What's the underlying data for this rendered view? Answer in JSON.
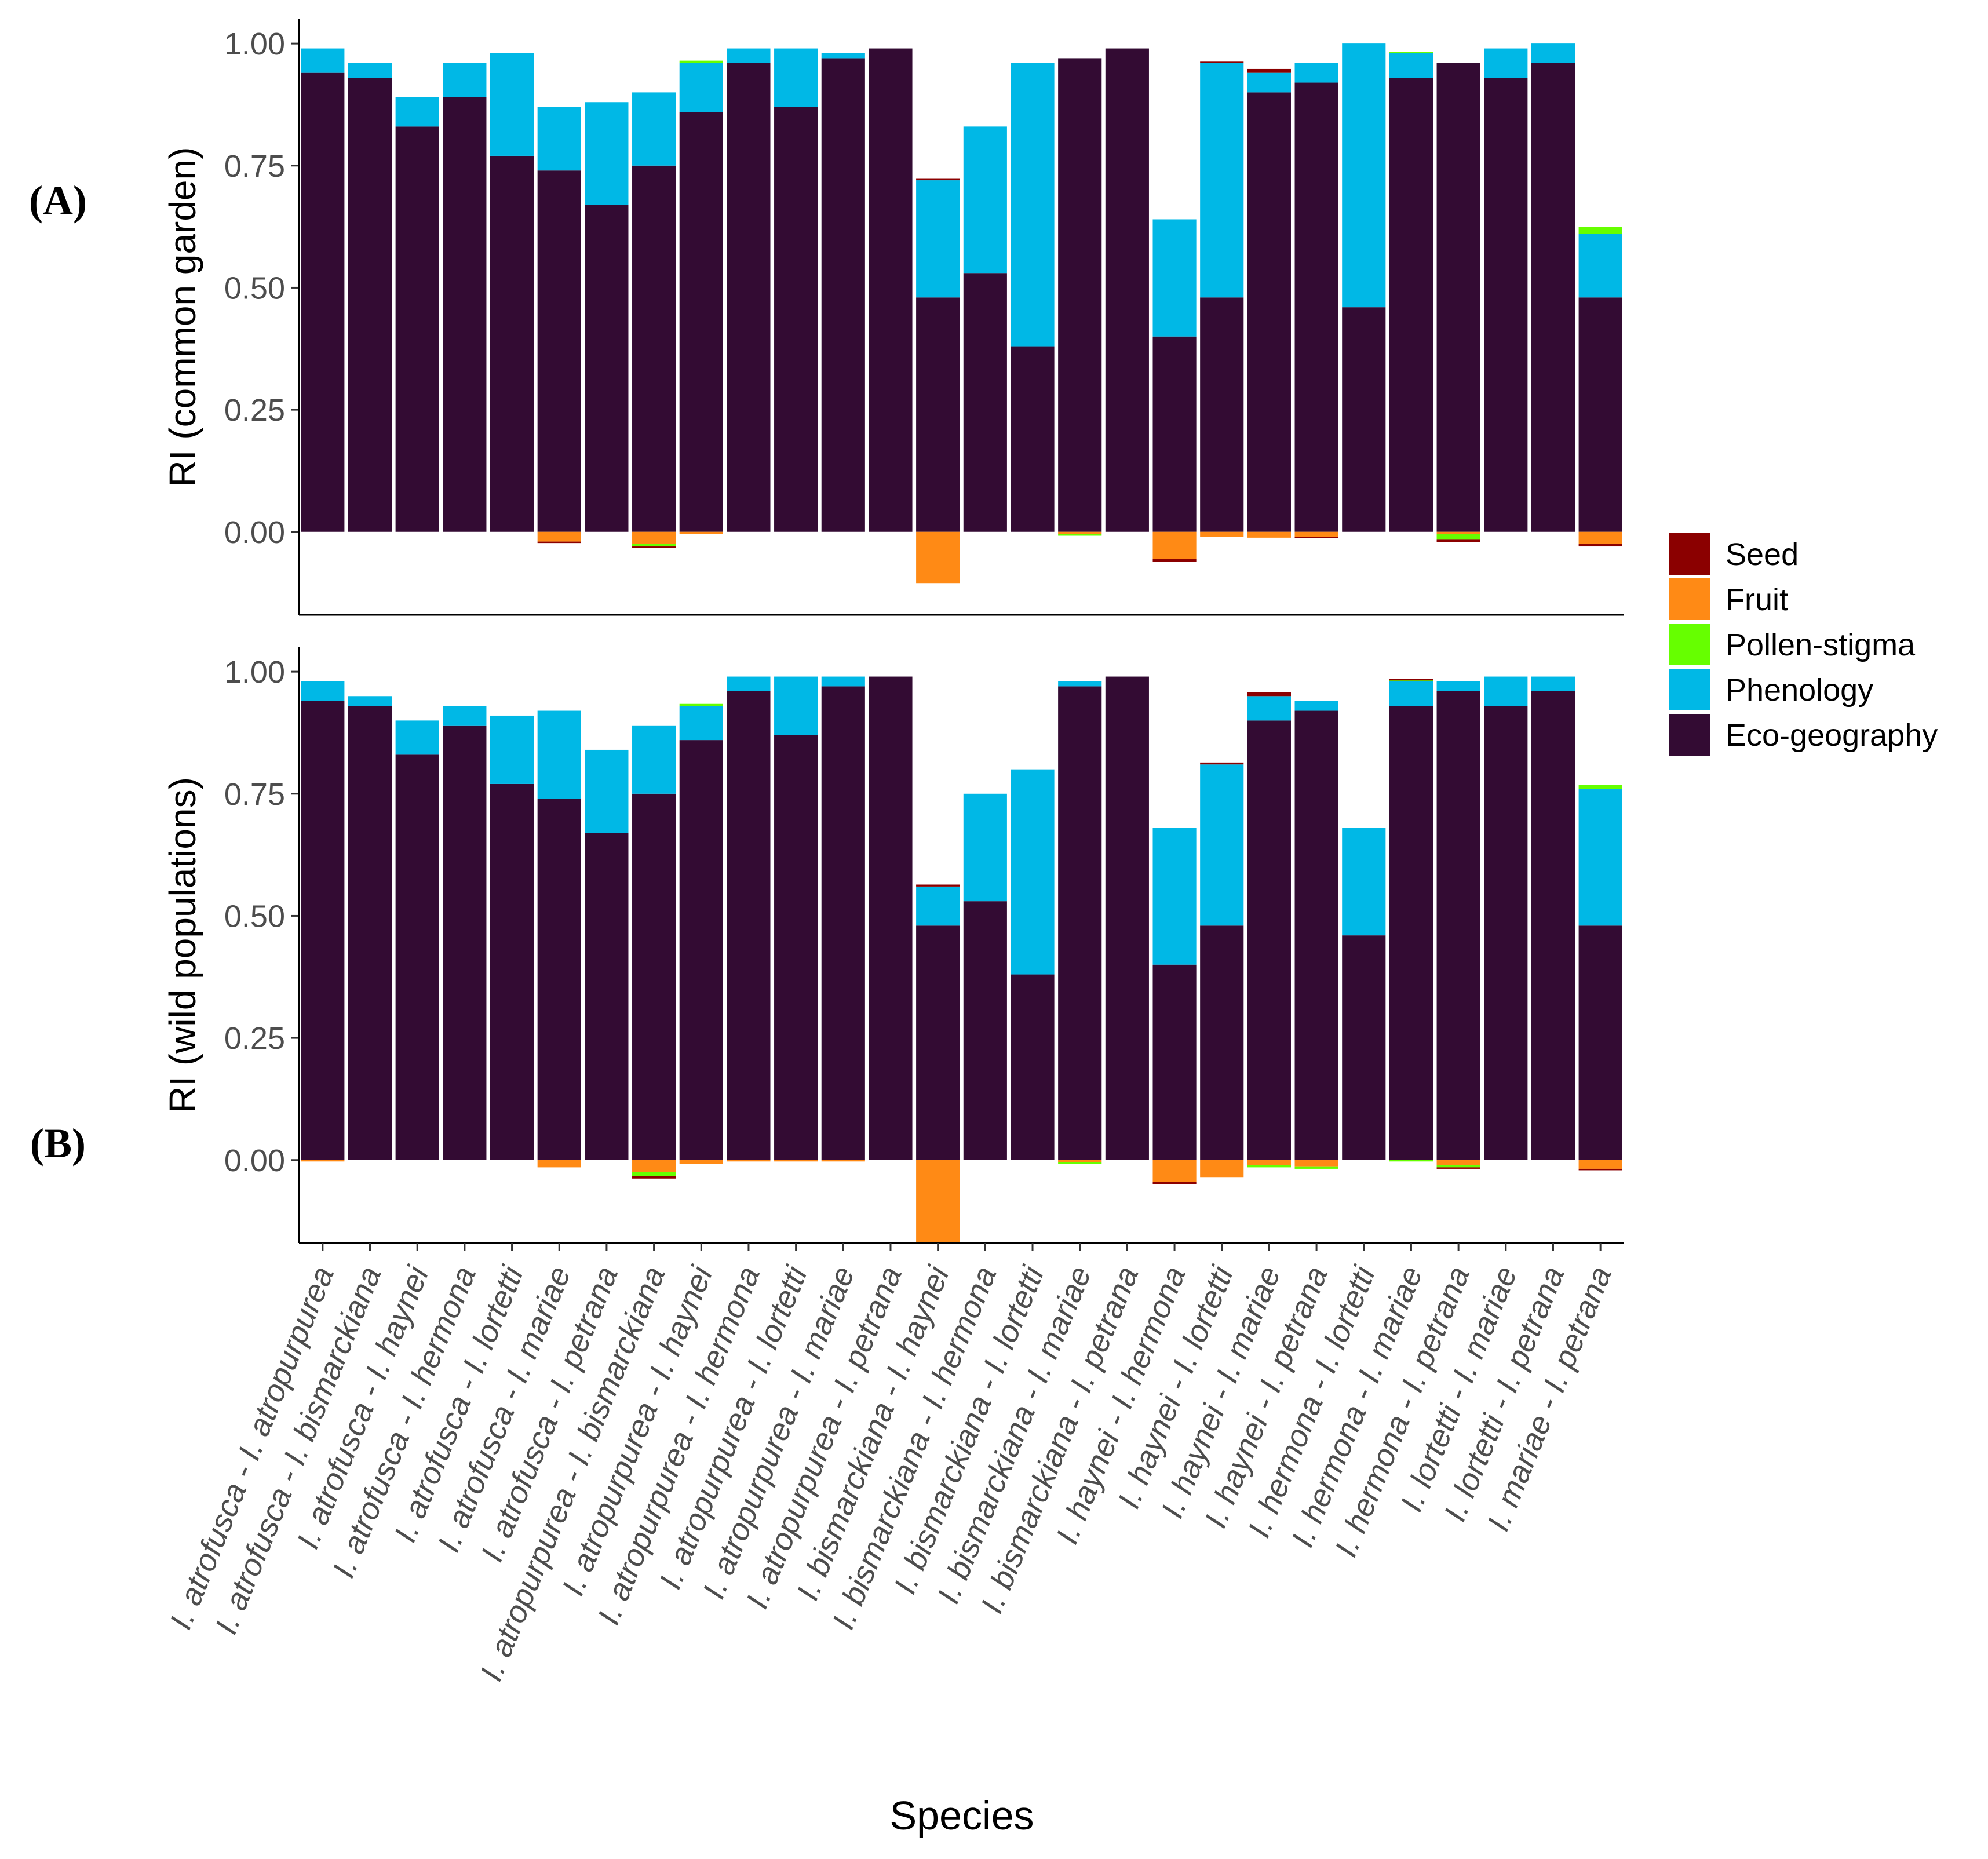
{
  "chart_data": {
    "type": "bar",
    "stacked": true,
    "xlabel": "Species",
    "ylim": [
      -0.17,
      1.05
    ],
    "yticks": [
      "0.00",
      "0.25",
      "0.50",
      "0.75",
      "1.00"
    ],
    "legend": {
      "position": "right",
      "entries": [
        "Seed",
        "Fruit",
        "Pollen-stigma",
        "Phenology",
        "Eco-geography"
      ]
    },
    "colors": {
      "Seed": "#8b0000",
      "Fruit": "#ff8a15",
      "Pollen-stigma": "#66ff00",
      "Phenology": "#00b8e6",
      "Eco-geography": "#330b33"
    },
    "categories": [
      "I. atrofusca - I. atropurpurea",
      "I. atrofusca - I. bismarckiana",
      "I. atrofusca - I. haynei",
      "I. atrofusca - I. hermona",
      "I. atrofusca - I. lortetti",
      "I. atrofusca - I. mariae",
      "I. atrofusca - I. petrana",
      "I. atropurpurea - I. bismarckiana",
      "I. atropurpurea - I. haynei",
      "I. atropurpurea - I. hermona",
      "I. atropurpurea - I. lortetti",
      "I. atropurpurea - I. mariae",
      "I. atropurpurea - I. petrana",
      "I. bismarckiana - I. haynei",
      "I. bismarckiana - I. hermona",
      "I. bismarckiana - I. lortetti",
      "I. bismarckiana - I. mariae",
      "I. bismarckiana - I. petrana",
      "I. haynei - I. hermona",
      "I. haynei - I. lortetti",
      "I. haynei - I. mariae",
      "I. haynei - I. petrana",
      "I. hermona - I. lortetti",
      "I. hermona - I. mariae",
      "I. hermona - I. petrana",
      "I. lortetti - I. mariae",
      "I. lortetti - I. petrana",
      "I. mariae - I. petrana"
    ],
    "panels": [
      {
        "label": "(A)",
        "ylabel": "RI (common garden)",
        "series": [
          {
            "name": "Eco-geography",
            "values": [
              0.94,
              0.93,
              0.83,
              0.89,
              0.77,
              0.74,
              0.67,
              0.75,
              0.86,
              0.96,
              0.87,
              0.97,
              0.99,
              0.48,
              0.53,
              0.38,
              0.97,
              0.99,
              0.4,
              0.48,
              0.9,
              0.92,
              0.46,
              0.93,
              0.96,
              0.93,
              0.96,
              0.48
            ]
          },
          {
            "name": "Phenology",
            "values": [
              0.05,
              0.03,
              0.06,
              0.07,
              0.21,
              0.13,
              0.21,
              0.15,
              0.1,
              0.03,
              0.12,
              0.01,
              0.0,
              0.24,
              0.3,
              0.58,
              0.0,
              0.0,
              0.24,
              0.48,
              0.04,
              0.04,
              0.54,
              0.05,
              0.0,
              0.06,
              0.04,
              0.13
            ]
          },
          {
            "name": "Pollen-stigma",
            "values": [
              0,
              0,
              0,
              0,
              0,
              0,
              0,
              0,
              0.005,
              0,
              0,
              0,
              0,
              0,
              0,
              0,
              0,
              0,
              0,
              0,
              0,
              0,
              0,
              0.003,
              0,
              0,
              0,
              0.015
            ]
          },
          {
            "name": "Fruit",
            "values": [
              0,
              0,
              0,
              0,
              0,
              -0.02,
              0,
              -0.025,
              -0.004,
              0,
              0,
              0,
              0,
              -0.105,
              0,
              0,
              -0.005,
              0,
              -0.055,
              -0.01,
              -0.012,
              -0.01,
              0,
              0,
              -0.005,
              0,
              0,
              -0.025
            ]
          },
          {
            "name": "Pollen-stigma negative",
            "values": [
              0,
              0,
              0,
              0,
              0,
              0,
              0,
              -0.005,
              0,
              0,
              0,
              0,
              0,
              0,
              0,
              0,
              -0.003,
              0,
              0,
              0,
              0,
              0,
              0,
              0,
              -0.01,
              0,
              0,
              0
            ]
          },
          {
            "name": "Seed",
            "values": [
              0,
              0,
              0,
              0,
              0,
              -0.003,
              0,
              -0.003,
              0,
              0,
              0,
              0,
              0,
              0.003,
              0,
              0,
              0,
              0,
              -0.006,
              0.003,
              0.008,
              -0.003,
              0,
              0,
              -0.006,
              0,
              0,
              -0.005
            ]
          }
        ]
      },
      {
        "label": "(B)",
        "ylabel": "RI (wild populations)",
        "series": [
          {
            "name": "Eco-geography",
            "values": [
              0.94,
              0.93,
              0.83,
              0.89,
              0.77,
              0.74,
              0.67,
              0.75,
              0.86,
              0.96,
              0.87,
              0.97,
              0.99,
              0.48,
              0.53,
              0.38,
              0.97,
              0.99,
              0.4,
              0.48,
              0.9,
              0.92,
              0.46,
              0.93,
              0.96,
              0.93,
              0.96,
              0.48
            ]
          },
          {
            "name": "Phenology",
            "values": [
              0.04,
              0.02,
              0.07,
              0.04,
              0.14,
              0.18,
              0.17,
              0.14,
              0.07,
              0.03,
              0.12,
              0.02,
              0.0,
              0.08,
              0.22,
              0.42,
              0.01,
              0.0,
              0.28,
              0.33,
              0.05,
              0.02,
              0.22,
              0.05,
              0.02,
              0.06,
              0.03,
              0.28
            ]
          },
          {
            "name": "Pollen-stigma",
            "values": [
              0,
              0,
              0,
              0,
              0,
              0,
              0,
              0,
              0.004,
              0,
              0,
              0,
              0,
              0,
              0,
              0,
              0,
              0,
              0,
              0,
              0,
              0,
              0,
              0.003,
              0,
              0,
              0,
              0.008
            ]
          },
          {
            "name": "Fruit",
            "values": [
              -0.003,
              0,
              0,
              0,
              0,
              -0.015,
              0,
              -0.025,
              -0.008,
              -0.003,
              -0.003,
              -0.003,
              0,
              -0.17,
              0,
              0,
              -0.005,
              0,
              -0.045,
              -0.035,
              -0.01,
              -0.013,
              0,
              0,
              -0.01,
              0,
              0,
              -0.018
            ]
          },
          {
            "name": "Pollen-stigma negative",
            "values": [
              0,
              0,
              0,
              0,
              0,
              0,
              0,
              -0.008,
              0,
              0,
              0,
              0,
              0,
              0,
              0,
              0,
              -0.003,
              0,
              0,
              0,
              -0.005,
              -0.005,
              0,
              -0.003,
              -0.005,
              0,
              0,
              0
            ]
          },
          {
            "name": "Seed",
            "values": [
              0,
              0,
              0,
              0,
              0,
              0,
              0,
              -0.005,
              0,
              0,
              0,
              0,
              0,
              0.004,
              0,
              0,
              0,
              0,
              -0.005,
              0.004,
              0.008,
              0,
              0,
              0.002,
              -0.003,
              0,
              0,
              -0.003
            ]
          }
        ]
      }
    ]
  }
}
